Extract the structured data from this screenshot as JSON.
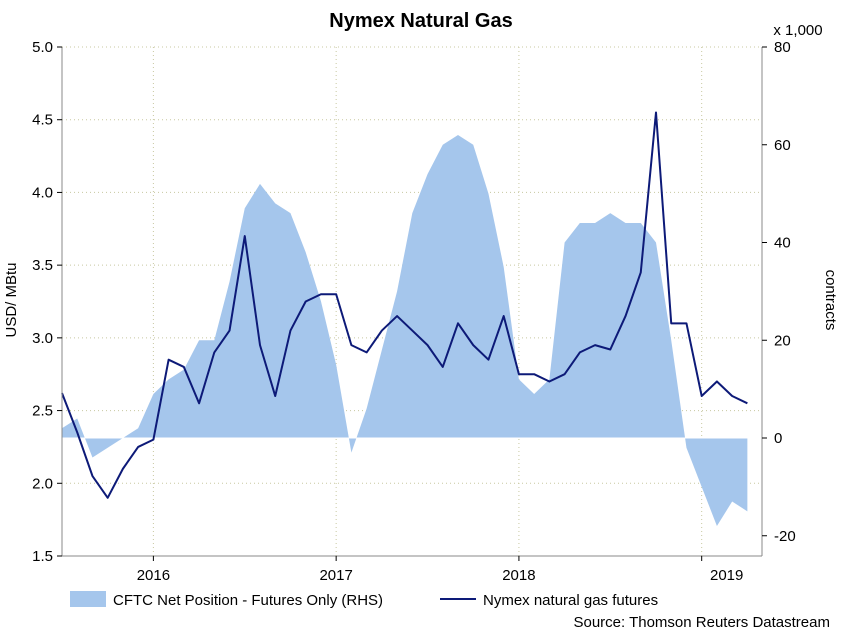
{
  "chart_data": {
    "type": "line",
    "title": "Nymex Natural Gas",
    "ylabel": "USD/ MBtu",
    "y2label": "contracts",
    "y2unit": "x 1,000",
    "source": "Source: Thomson Reuters Datastream",
    "ylim": [
      1.5,
      5.0
    ],
    "y2lim": [
      -22,
      80
    ],
    "yticks": [
      "1.5",
      "2.0",
      "2.5",
      "3.0",
      "3.5",
      "4.0",
      "4.5",
      "5.0"
    ],
    "y2ticks": [
      "-20",
      "0",
      "20",
      "40",
      "60",
      "80"
    ],
    "x_ticks": [
      "2016",
      "2017",
      "2018",
      "2019"
    ],
    "grid": true,
    "legend_position": "bottom",
    "colors": {
      "area": "#a5c6ec",
      "line": "#0d1a78",
      "grid": "#c8c8a0"
    },
    "series": [
      {
        "name": "CFTC Net Position - Futures Only (RHS)",
        "axis": "right",
        "type": "area",
        "x": [
          "2015-07",
          "2015-08",
          "2015-09",
          "2015-10",
          "2015-11",
          "2015-12",
          "2016-01",
          "2016-02",
          "2016-03",
          "2016-04",
          "2016-05",
          "2016-06",
          "2016-07",
          "2016-08",
          "2016-09",
          "2016-10",
          "2016-11",
          "2016-12",
          "2017-01",
          "2017-02",
          "2017-03",
          "2017-04",
          "2017-05",
          "2017-06",
          "2017-07",
          "2017-08",
          "2017-09",
          "2017-10",
          "2017-11",
          "2017-12",
          "2018-01",
          "2018-02",
          "2018-03",
          "2018-04",
          "2018-05",
          "2018-06",
          "2018-07",
          "2018-08",
          "2018-09",
          "2018-10",
          "2018-11",
          "2018-12",
          "2019-01",
          "2019-02",
          "2019-03",
          "2019-04"
        ],
        "values": [
          2,
          4,
          -4,
          -2,
          0,
          2,
          9,
          12,
          14,
          20,
          20,
          32,
          47,
          52,
          48,
          46,
          38,
          28,
          15,
          -3,
          6,
          18,
          30,
          46,
          54,
          60,
          62,
          60,
          50,
          35,
          12,
          9,
          12,
          40,
          44,
          44,
          46,
          44,
          44,
          40,
          20,
          -2,
          -10,
          -18,
          -13,
          -15
        ]
      },
      {
        "name": "Nymex natural gas futures",
        "axis": "left",
        "type": "line",
        "x": [
          "2015-07",
          "2015-08",
          "2015-09",
          "2015-10",
          "2015-11",
          "2015-12",
          "2016-01",
          "2016-02",
          "2016-03",
          "2016-04",
          "2016-05",
          "2016-06",
          "2016-07",
          "2016-08",
          "2016-09",
          "2016-10",
          "2016-11",
          "2016-12",
          "2017-01",
          "2017-02",
          "2017-03",
          "2017-04",
          "2017-05",
          "2017-06",
          "2017-07",
          "2017-08",
          "2017-09",
          "2017-10",
          "2017-11",
          "2017-12",
          "2018-01",
          "2018-02",
          "2018-03",
          "2018-04",
          "2018-05",
          "2018-06",
          "2018-07",
          "2018-08",
          "2018-09",
          "2018-10",
          "2018-11",
          "2018-12",
          "2019-01",
          "2019-02",
          "2019-03",
          "2019-04"
        ],
        "values": [
          2.62,
          2.35,
          2.05,
          1.9,
          2.1,
          2.25,
          2.3,
          2.85,
          2.8,
          2.55,
          2.9,
          3.05,
          3.7,
          2.95,
          2.6,
          3.05,
          3.25,
          3.3,
          3.3,
          2.95,
          2.9,
          3.05,
          3.15,
          3.05,
          2.95,
          2.8,
          3.1,
          2.95,
          2.85,
          3.15,
          2.75,
          2.75,
          2.7,
          2.75,
          2.9,
          2.95,
          2.92,
          3.15,
          3.45,
          4.55,
          3.1,
          3.1,
          2.6,
          2.7,
          2.6,
          2.55
        ]
      }
    ]
  }
}
